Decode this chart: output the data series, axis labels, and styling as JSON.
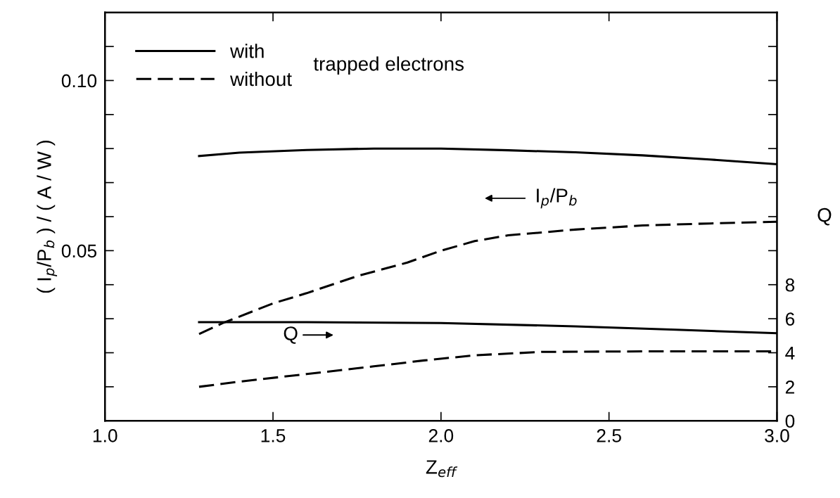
{
  "chart_data": {
    "type": "line",
    "xlabel": "Z$_{eff}$",
    "ylabel": "( I$_{p}$/P$_{b}$ ) / ( A / W )",
    "y2label": "Q",
    "xlim": [
      1.0,
      3.0
    ],
    "xticks": [
      {
        "value": 1.0,
        "label": "1.0"
      },
      {
        "value": 1.5,
        "label": "1.5"
      },
      {
        "value": 2.0,
        "label": "2.0"
      },
      {
        "value": 2.5,
        "label": "2.5"
      },
      {
        "value": 3.0,
        "label": "3.0"
      }
    ],
    "ylim": [
      0,
      0.12
    ],
    "yticks": [
      {
        "value": 0.01,
        "label": null
      },
      {
        "value": 0.02,
        "label": null
      },
      {
        "value": 0.03,
        "label": null
      },
      {
        "value": 0.04,
        "label": null
      },
      {
        "value": 0.05,
        "label": "0.05"
      },
      {
        "value": 0.06,
        "label": null
      },
      {
        "value": 0.07,
        "label": null
      },
      {
        "value": 0.08,
        "label": null
      },
      {
        "value": 0.09,
        "label": null
      },
      {
        "value": 0.1,
        "label": "0.10"
      },
      {
        "value": 0.11,
        "label": null
      }
    ],
    "y2lim": [
      0,
      24
    ],
    "y2ticks": [
      0,
      2,
      4,
      6,
      8,
      {
        "value": 10,
        "label": null
      },
      {
        "value": 12,
        "label": null
      },
      {
        "value": 14,
        "label": null
      },
      {
        "value": 16,
        "label": null
      },
      {
        "value": 18,
        "label": null
      },
      {
        "value": 20,
        "label": null
      },
      {
        "value": 22,
        "label": null
      }
    ],
    "legend": "top left",
    "grid": false,
    "marker": "none",
    "series": [
      {
        "name": "with",
        "color": "#000000",
        "line_style": "solid",
        "x": [
          1.28,
          1.4,
          1.6,
          1.8,
          2.0,
          2.2,
          2.4,
          2.6,
          2.8,
          3.0
        ],
        "values": [
          0.0778,
          0.0788,
          0.0796,
          0.08,
          0.08,
          0.0795,
          0.0789,
          0.078,
          0.0768,
          0.0754
        ]
      },
      {
        "name": "without",
        "color": "#000000",
        "line_style": "dashed",
        "x": [
          1.28,
          1.35,
          1.5,
          1.6,
          1.75,
          1.9,
          2.0,
          2.1,
          2.2,
          2.4,
          2.6,
          2.8,
          3.0
        ],
        "values": [
          0.0255,
          0.0287,
          0.0345,
          0.0375,
          0.0425,
          0.0465,
          0.05,
          0.0528,
          0.0545,
          0.0562,
          0.0574,
          0.058,
          0.0585
        ]
      },
      {
        "color": "#000000",
        "line_style": "solid",
        "axis": "y2",
        "x": [
          1.28,
          1.6,
          2.0,
          2.4,
          2.7,
          3.0
        ],
        "values": [
          5.8,
          5.8,
          5.75,
          5.55,
          5.35,
          5.15
        ]
      },
      {
        "color": "#000000",
        "line_style": "dashed",
        "axis": "y2",
        "x": [
          1.28,
          1.4,
          1.6,
          1.8,
          1.95,
          2.1,
          2.3,
          2.6,
          3.0
        ],
        "values": [
          2.0,
          2.3,
          2.75,
          3.2,
          3.55,
          3.85,
          4.05,
          4.08,
          4.08
        ]
      }
    ],
    "annotations": [
      "trapped electrons",
      "I$_{p}$/P$_{b}$",
      "Q"
    ]
  }
}
